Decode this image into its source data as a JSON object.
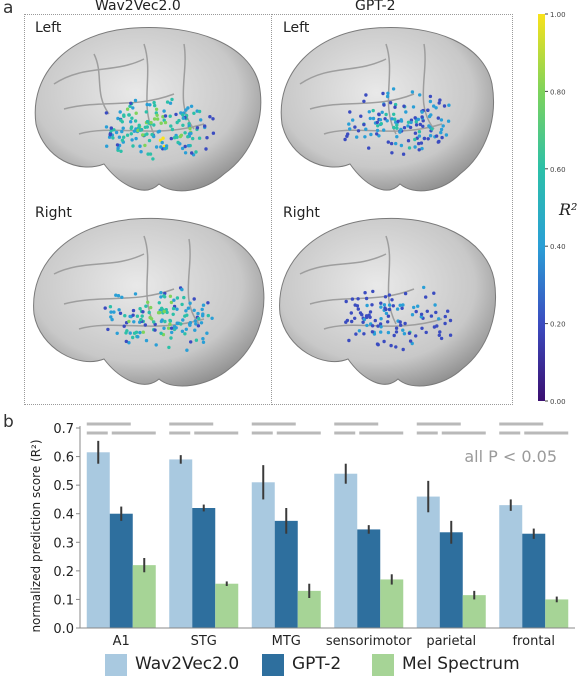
{
  "panel_a": {
    "label": "a",
    "model_titles": [
      "Wav2Vec2.0",
      "GPT-2"
    ],
    "hemisphere_labels": [
      "Left",
      "Left",
      "Right",
      "Right"
    ],
    "colorbar": {
      "tick_labels": [
        "0.00",
        "0.20",
        "0.40",
        "0.60",
        "0.80",
        "1.00"
      ],
      "label": "R²",
      "colors": [
        "#3b0f70",
        "#3b4cc0",
        "#2a9fd6",
        "#2cc0a8",
        "#7ed35b",
        "#f9e21b"
      ]
    }
  },
  "panel_b": {
    "label": "b",
    "annotation": "all P < 0.05",
    "legend": [
      "Wav2Vec2.0",
      "GPT-2",
      "Mel Spectrum"
    ],
    "colors": {
      "Wav2Vec2.0": "#a9c9e0",
      "GPT-2": "#2e6f9e",
      "Mel Spectrum": "#a6d496"
    }
  },
  "chart_data": {
    "type": "bar",
    "categories": [
      "A1",
      "STG",
      "MTG",
      "sensorimotor",
      "parietal",
      "frontal"
    ],
    "ylabel": "normalized prediction score (R²)",
    "ylim": [
      0,
      0.7
    ],
    "yticks": [
      "0.0",
      "0.1",
      "0.2",
      "0.3",
      "0.4",
      "0.5",
      "0.6",
      "0.7"
    ],
    "series": [
      {
        "name": "Wav2Vec2.0",
        "values": [
          0.615,
          0.59,
          0.51,
          0.54,
          0.46,
          0.43
        ],
        "err": [
          0.04,
          0.015,
          0.06,
          0.035,
          0.055,
          0.02
        ]
      },
      {
        "name": "GPT-2",
        "values": [
          0.4,
          0.42,
          0.375,
          0.345,
          0.335,
          0.33
        ],
        "err": [
          0.025,
          0.012,
          0.045,
          0.015,
          0.04,
          0.018
        ]
      },
      {
        "name": "Mel Spectrum",
        "values": [
          0.22,
          0.155,
          0.13,
          0.17,
          0.115,
          0.1
        ],
        "err": [
          0.025,
          0.008,
          0.025,
          0.018,
          0.015,
          0.01
        ]
      }
    ],
    "grid": false,
    "legend_position": "bottom"
  }
}
